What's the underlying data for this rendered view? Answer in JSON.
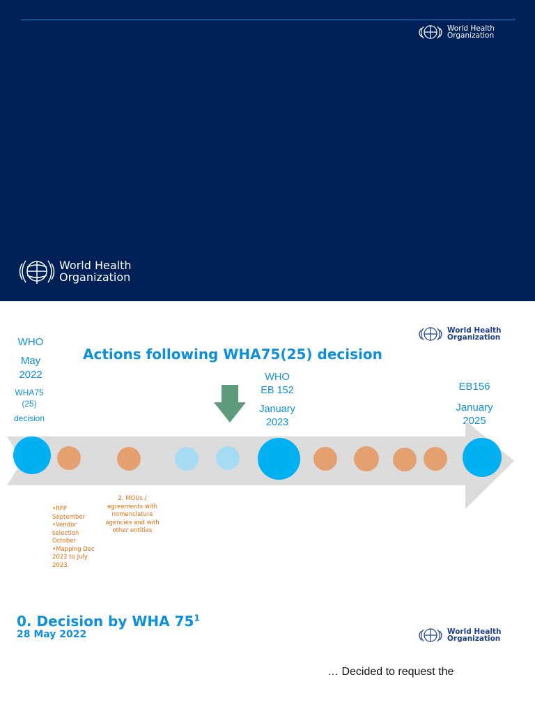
{
  "logos": {
    "line1": "World Health",
    "line2": "Organization"
  },
  "timeline_slide": {
    "title": "Actions following WHA75(25) decision",
    "left_header": {
      "org": "WHO",
      "month": "May",
      "year": "2022",
      "code1": "WHA75",
      "code2": "(25)",
      "code3": "decision"
    },
    "mid_header": {
      "org": "WHO",
      "meeting": "EB 152",
      "month": "January",
      "year": "2023"
    },
    "right_header": {
      "meeting": "EB156",
      "month": "January",
      "year": "2025"
    },
    "note1_items": [
      "RFP September",
      "Vendor selection October",
      "Mapping Dec 2022 to July 2023."
    ],
    "note2": "2. MOUs / agreements with nomenclature agencies  and with other entities",
    "colors": {
      "large_dot": "#00b0f0",
      "pale_dot": "#a5dcf3",
      "orange_dot": "#e5a070",
      "arrow": "#5d9b7c",
      "band": "#dcdcdc"
    }
  },
  "decision_slide": {
    "title": "0. Decision by WHA 75",
    "superscript": "1",
    "date": "28 May 2022",
    "body": "… Decided to request the"
  }
}
